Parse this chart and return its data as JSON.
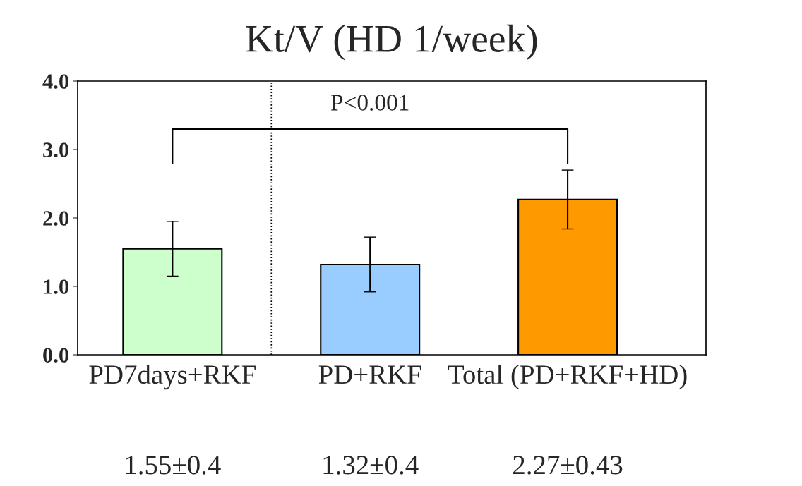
{
  "chart_data": {
    "type": "bar",
    "title": "Kt/V (HD 1/week)",
    "categories": [
      "PD7days+RKF",
      "PD+RKF",
      "Total (PD+RKF+HD)"
    ],
    "values": [
      1.55,
      1.32,
      2.27
    ],
    "colors": [
      "#ccffcc",
      "#99ccff",
      "#ff9900"
    ],
    "errors": [
      0.4,
      0.4,
      0.43
    ],
    "value_labels": [
      "1.55±0.4",
      "1.32±0.4",
      "2.27±0.43"
    ],
    "ylim": [
      0,
      4
    ],
    "yticks": [
      {
        "value": 0,
        "label": "0.0"
      },
      {
        "value": 1,
        "label": "1.0"
      },
      {
        "value": 2,
        "label": "2.0"
      },
      {
        "value": 3,
        "label": "3.0"
      },
      {
        "value": 4,
        "label": "4.0"
      }
    ],
    "annotations": [
      "P<0.001"
    ],
    "grid": false,
    "legend": false
  }
}
